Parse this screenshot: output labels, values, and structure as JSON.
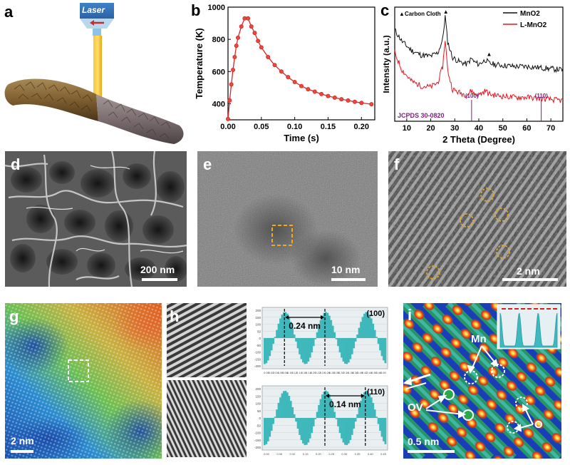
{
  "panels": {
    "a": {
      "label": "a",
      "laser_text": "Laser"
    },
    "b": {
      "label": "b"
    },
    "c": {
      "label": "c",
      "annotation": "Carbon Cloth",
      "jcpds": "JCPDS 30-0820",
      "peak_100": "(100)",
      "peak_110": "(110)"
    },
    "d": {
      "label": "d",
      "scale": "200 nm"
    },
    "e": {
      "label": "e",
      "scale": "10 nm"
    },
    "f": {
      "label": "f",
      "scale": "2 nm"
    },
    "g": {
      "label": "g",
      "scale": "2 nm"
    },
    "h": {
      "label": "h",
      "top_tag": "(100)",
      "bottom_tag": "(110)",
      "top_spacing": "0.24 nm",
      "bottom_spacing": "0.14 nm"
    },
    "i": {
      "label": "i",
      "scale": "0.5 nm",
      "mn": "Mn",
      "ov": "OV",
      "o": "O"
    }
  },
  "chart_data": [
    {
      "type": "line",
      "panel": "b",
      "xlabel": "Time (s)",
      "ylabel": "Temperature (K)",
      "xlim": [
        0,
        0.22
      ],
      "ylim": [
        300,
        1000
      ],
      "xticks": [
        0.0,
        0.05,
        0.1,
        0.15,
        0.2
      ],
      "xtick_labels": [
        "0.00",
        "0.05",
        "0.10",
        "0.15",
        "0.20"
      ],
      "yticks": [
        400,
        600,
        800,
        1000
      ],
      "ytick_labels": [
        "400",
        "600",
        "800",
        "1000"
      ],
      "color": "#d62728",
      "x": [
        0.0,
        0.0025,
        0.005,
        0.0075,
        0.01,
        0.0125,
        0.015,
        0.02,
        0.025,
        0.03,
        0.035,
        0.04,
        0.045,
        0.05,
        0.06,
        0.07,
        0.08,
        0.09,
        0.1,
        0.11,
        0.12,
        0.13,
        0.14,
        0.15,
        0.16,
        0.17,
        0.18,
        0.19,
        0.2,
        0.215
      ],
      "y": [
        305,
        420,
        520,
        610,
        690,
        760,
        810,
        880,
        930,
        930,
        880,
        840,
        790,
        750,
        690,
        640,
        600,
        565,
        535,
        510,
        490,
        475,
        460,
        448,
        438,
        428,
        420,
        412,
        405,
        397
      ]
    },
    {
      "type": "line",
      "panel": "c",
      "xlabel": "2 Theta (Degree)",
      "ylabel": "Intensity (a.u.)",
      "xlim": [
        5,
        75
      ],
      "xticks": [
        10,
        20,
        30,
        40,
        50,
        60,
        70
      ],
      "xtick_labels": [
        "10",
        "20",
        "30",
        "40",
        "50",
        "60",
        "70"
      ],
      "legend": [
        "MnO2",
        "L-MnO2"
      ],
      "legend_position": "top-right",
      "series": [
        {
          "name": "MnO2",
          "color": "#111111",
          "x": [
            5,
            8,
            12,
            16,
            20,
            23,
            25,
            26,
            27,
            29,
            32,
            35,
            37,
            38,
            40,
            43,
            44,
            46,
            50,
            55,
            60,
            65,
            70,
            75
          ],
          "y": [
            0.8,
            0.7,
            0.62,
            0.58,
            0.57,
            0.6,
            0.72,
            0.92,
            0.7,
            0.56,
            0.52,
            0.5,
            0.55,
            0.52,
            0.5,
            0.54,
            0.51,
            0.5,
            0.49,
            0.48,
            0.48,
            0.47,
            0.46,
            0.45
          ]
        },
        {
          "name": "L-MnO2",
          "color": "#e8141e",
          "x": [
            5,
            8,
            12,
            16,
            20,
            23,
            25,
            26,
            27,
            29,
            32,
            35,
            37,
            38,
            40,
            43,
            44,
            46,
            50,
            55,
            60,
            65,
            70,
            75
          ],
          "y": [
            0.6,
            0.45,
            0.35,
            0.31,
            0.3,
            0.34,
            0.48,
            0.72,
            0.45,
            0.28,
            0.25,
            0.23,
            0.27,
            0.24,
            0.23,
            0.27,
            0.24,
            0.23,
            0.22,
            0.21,
            0.21,
            0.2,
            0.19,
            0.18
          ]
        }
      ],
      "reference_lines": [
        37,
        66
      ]
    },
    {
      "type": "bar",
      "panel": "h",
      "name": "(100) line profile",
      "x_ticks": [
        "0.00",
        "0.02",
        "0.04",
        "0.06",
        "0.08",
        "0.10",
        "0.12",
        "0.14",
        "0.16",
        "0.18",
        "0.20",
        "0.22",
        "0.24",
        "0.26",
        "0.28",
        "0.30",
        "0.32",
        "0.34",
        "0.36",
        "0.38",
        "0.40",
        "0.42",
        "0.44",
        "0.46",
        "0.48",
        "0.50"
      ],
      "y_ticks": [
        "200",
        "150",
        "100",
        "50",
        "0",
        "-50",
        "-100",
        "-150",
        "-200"
      ],
      "period_nm": 0.24,
      "cycles": 3.0
    },
    {
      "type": "bar",
      "panel": "h",
      "name": "(110) line profile",
      "x_ticks": [
        "0.00",
        "0.05",
        "0.10",
        "0.15",
        "0.20",
        "0.25",
        "0.30",
        "0.35",
        "0.40",
        "0.45"
      ],
      "y_ticks": [
        "200",
        "150",
        "100",
        "50",
        "0",
        "-50",
        "-100",
        "-150",
        "-200"
      ],
      "period_nm": 0.14,
      "cycles": 3.0
    }
  ]
}
